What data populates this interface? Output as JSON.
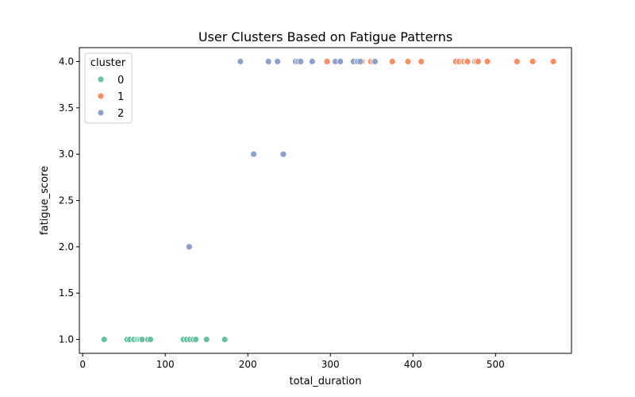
{
  "chart_data": {
    "type": "scatter",
    "title": "User Clusters Based on Fatigue Patterns",
    "xlabel": "total_duration",
    "ylabel": "fatigue_score",
    "xlim": [
      -4,
      592
    ],
    "ylim": [
      0.85,
      4.15
    ],
    "xticks": [
      0,
      100,
      200,
      300,
      400,
      500
    ],
    "yticks": [
      1.0,
      1.5,
      2.0,
      2.5,
      3.0,
      3.5,
      4.0
    ],
    "ytick_labels": [
      "1.0",
      "1.5",
      "2.0",
      "2.5",
      "3.0",
      "3.5",
      "4.0"
    ],
    "grid": false,
    "legend": {
      "title": "cluster",
      "placement": "top-left"
    },
    "series": [
      {
        "name": "0",
        "color": "#66c2a5",
        "points": [
          [
            26,
            1.0
          ],
          [
            54,
            1.0
          ],
          [
            57,
            1.0
          ],
          [
            62,
            1.0
          ],
          [
            66,
            1.0
          ],
          [
            68,
            1.0
          ],
          [
            70,
            1.0
          ],
          [
            72,
            1.0
          ],
          [
            79,
            1.0
          ],
          [
            82,
            1.0
          ],
          [
            122,
            1.0
          ],
          [
            126,
            1.0
          ],
          [
            130,
            1.0
          ],
          [
            134,
            1.0
          ],
          [
            137,
            1.0
          ],
          [
            150,
            1.0
          ],
          [
            172,
            1.0
          ]
        ]
      },
      {
        "name": "1",
        "color": "#fc8d62",
        "points": [
          [
            296,
            4.0
          ],
          [
            330,
            4.0
          ],
          [
            338,
            4.0
          ],
          [
            349,
            4.0
          ],
          [
            352,
            4.0
          ],
          [
            375,
            4.0
          ],
          [
            394,
            4.0
          ],
          [
            410,
            4.0
          ],
          [
            452,
            4.0
          ],
          [
            456,
            4.0
          ],
          [
            460,
            4.0
          ],
          [
            462,
            4.0
          ],
          [
            465,
            4.0
          ],
          [
            466,
            4.0
          ],
          [
            475,
            4.0
          ],
          [
            477,
            4.0
          ],
          [
            479,
            4.0
          ],
          [
            490,
            4.0
          ],
          [
            526,
            4.0
          ],
          [
            545,
            4.0
          ],
          [
            570,
            4.0
          ]
        ]
      },
      {
        "name": "2",
        "color": "#8da0cb",
        "points": [
          [
            129,
            2.0
          ],
          [
            191,
            4.0
          ],
          [
            207,
            3.0
          ],
          [
            225,
            4.0
          ],
          [
            236,
            4.0
          ],
          [
            243,
            3.0
          ],
          [
            258,
            4.0
          ],
          [
            261,
            4.0
          ],
          [
            264,
            4.0
          ],
          [
            278,
            4.0
          ],
          [
            306,
            4.0
          ],
          [
            312,
            4.0
          ],
          [
            328,
            4.0
          ],
          [
            333,
            4.0
          ],
          [
            336,
            4.0
          ],
          [
            354,
            4.0
          ]
        ]
      }
    ]
  }
}
